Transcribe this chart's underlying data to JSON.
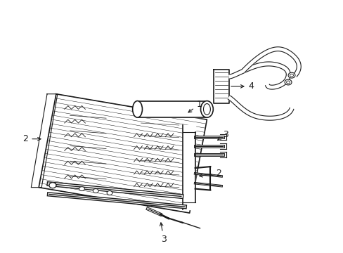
{
  "background_color": "#ffffff",
  "line_color": "#1a1a1a",
  "figure_width": 4.89,
  "figure_height": 3.6,
  "dpi": 100,
  "font_size": 9
}
